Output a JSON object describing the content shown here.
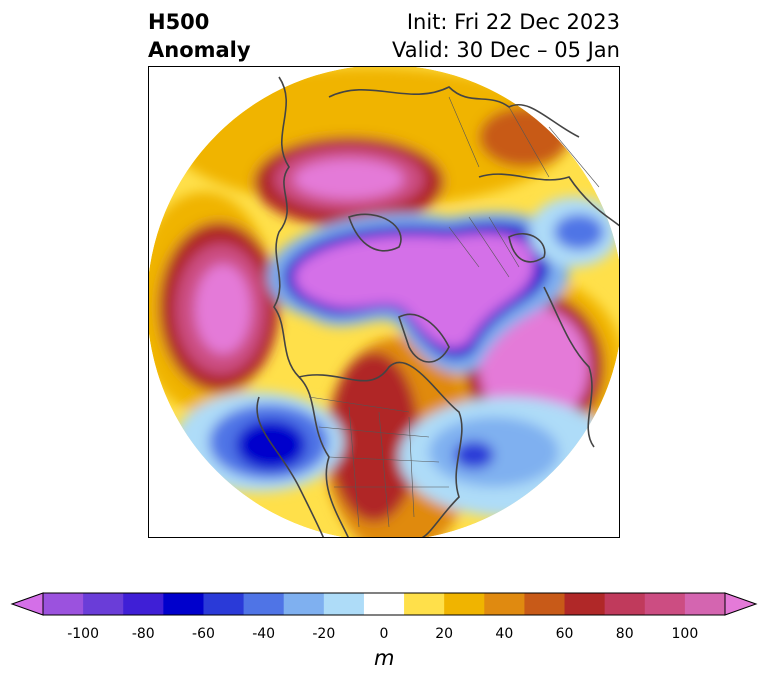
{
  "title": {
    "left_line1": "H500",
    "left_line2": "Anomaly",
    "init": "Init: Fri 22 Dec 2023",
    "valid": "Valid: 30 Dec – 05 Jan"
  },
  "colorbar": {
    "unit": "m",
    "ticks": [
      "-100",
      "-80",
      "-60",
      "-40",
      "-20",
      "0",
      "20",
      "40",
      "60",
      "80",
      "100"
    ],
    "colors": [
      "#d46fe8",
      "#9b52de",
      "#6a3dd8",
      "#3f1fd6",
      "#0000cc",
      "#2a3ad8",
      "#4f74e6",
      "#7fb0f0",
      "#aedcf8",
      "#ffffff",
      "#ffe04a",
      "#f0b400",
      "#e08a10",
      "#c85a18",
      "#b02828",
      "#c03a5c",
      "#cc4d82",
      "#d465b0",
      "#e47ad8"
    ]
  }
}
